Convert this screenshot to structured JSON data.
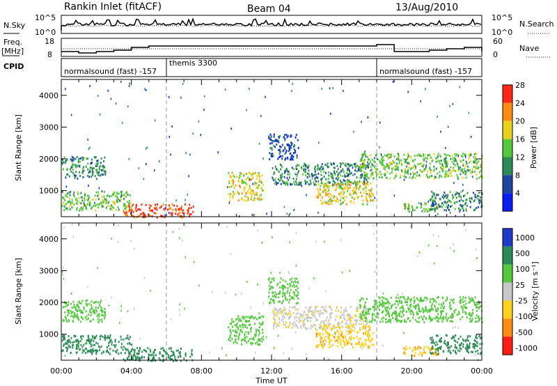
{
  "header": {
    "station": "Rankin Inlet (fitACF)",
    "beam": "Beam 04",
    "date": "13/Aug/2010"
  },
  "nsky_panel": {
    "left_label": "N.Sky",
    "left_ticks": [
      "10^5",
      "10^0"
    ],
    "right_label": "N.Search",
    "right_ticks": [
      "10^5",
      "10^0"
    ]
  },
  "freq_panel": {
    "left_label_line1": "Freq.",
    "left_label_line2": "[MHz]",
    "left_ticks": [
      "18",
      "8"
    ],
    "right_label": "Nave",
    "right_ticks": [
      "60",
      "0"
    ]
  },
  "cpid_panel": {
    "label": "CPID",
    "programs": [
      {
        "name": "normalsound (fast)",
        "id": "-157",
        "start_hour": 0
      },
      {
        "name": "themis",
        "id": "3300",
        "start_hour": 6
      },
      {
        "name": "normalsound (fast)",
        "id": "-157",
        "start_hour": 18
      }
    ]
  },
  "power_panel": {
    "ylabel": "Slant Range [km]",
    "y_ticks": [
      "1000",
      "2000",
      "3000",
      "4000"
    ],
    "colorbar_label": "Power [dB]",
    "colorbar_ticks": [
      "4",
      "8",
      "12",
      "16",
      "20",
      "24",
      "28"
    ],
    "colors": [
      "#0a1ef0",
      "#1e46a0",
      "#2e8b57",
      "#55c840",
      "#e6d21e",
      "#ff8c14",
      "#ff2814"
    ]
  },
  "velocity_panel": {
    "ylabel": "Slant Range [km]",
    "y_ticks": [
      "1000",
      "2000",
      "3000",
      "4000"
    ],
    "colorbar_label": "Velocity [m s⁻¹]",
    "colorbar_ticks": [
      "1000",
      "500",
      "100",
      "25",
      "-25",
      "-100",
      "-500",
      "-1000"
    ],
    "colors": [
      "#1e3cc8",
      "#2e8b57",
      "#55c840",
      "#c8c8c8",
      "#ffd21e",
      "#ff8c14",
      "#ff1e14"
    ]
  },
  "x_axis": {
    "label": "Time UT",
    "ticks": [
      "00:00",
      "04:00",
      "08:00",
      "12:00",
      "16:00",
      "20:00",
      "00:00"
    ]
  },
  "chart_data": {
    "type": "heatmap",
    "x_range_hours": [
      0,
      24
    ],
    "y_range_km": [
      180,
      4500
    ],
    "echo_regions": [
      {
        "t0": 0.0,
        "t1": 2.5,
        "r0": 1400,
        "r1": 2100,
        "power_db": 12,
        "velocity": 25
      },
      {
        "t0": 0.0,
        "t1": 4.0,
        "r0": 400,
        "r1": 1000,
        "power_db": 16,
        "velocity": 100
      },
      {
        "t0": 3.5,
        "t1": 7.5,
        "r0": 180,
        "r1": 600,
        "power_db": 28,
        "velocity": 100
      },
      {
        "t0": 9.5,
        "t1": 11.5,
        "r0": 700,
        "r1": 1600,
        "power_db": 20,
        "velocity": 25
      },
      {
        "t0": 11.8,
        "t1": 13.5,
        "r0": 2000,
        "r1": 2800,
        "power_db": 8,
        "velocity": 25
      },
      {
        "t0": 12.0,
        "t1": 17.5,
        "r0": 1200,
        "r1": 1900,
        "power_db": 12,
        "velocity": -25
      },
      {
        "t0": 14.5,
        "t1": 17.8,
        "r0": 600,
        "r1": 1300,
        "power_db": 20,
        "velocity": -100
      },
      {
        "t0": 17.0,
        "t1": 24.0,
        "r0": 1400,
        "r1": 2200,
        "power_db": 16,
        "velocity": 25
      },
      {
        "t0": 19.5,
        "t1": 21.5,
        "r0": 350,
        "r1": 650,
        "power_db": 16,
        "velocity": -100
      },
      {
        "t0": 21.0,
        "t1": 24.0,
        "r0": 400,
        "r1": 1000,
        "power_db": 12,
        "velocity": 100
      }
    ]
  }
}
